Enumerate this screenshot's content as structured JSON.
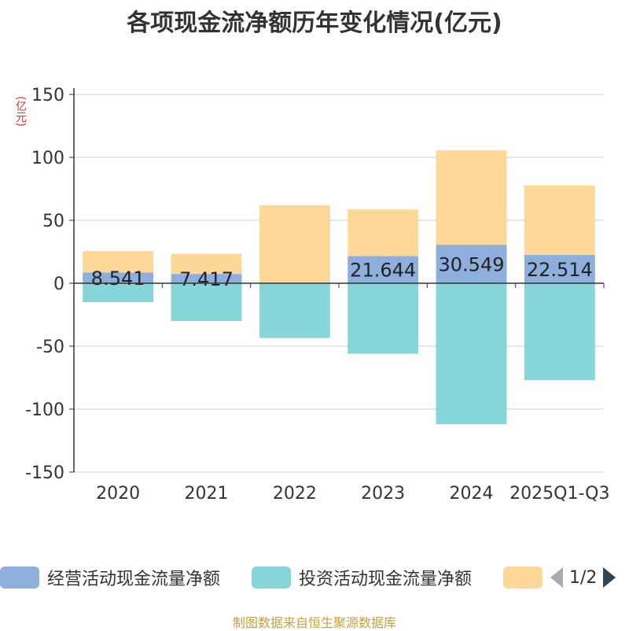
{
  "title": "各项现金流净额历年变化情况(亿元)",
  "y_unit": "(亿元)",
  "source": "制图数据来自恒生聚源数据库",
  "pager": {
    "text": "1/2"
  },
  "colors": {
    "operating": "#8eaedc",
    "investing": "#86d6d9",
    "third": "#fed898",
    "axis": "#333333",
    "grid": "#cccccc"
  },
  "legend": [
    {
      "label": "经营活动现金流量净额",
      "color": "#8eaedc"
    },
    {
      "label": "投资活动现金流量净额",
      "color": "#86d6d9"
    },
    {
      "label": "",
      "color": "#fed898"
    }
  ],
  "chart_data": {
    "type": "bar",
    "stacked": true,
    "title": "各项现金流净额历年变化情况(亿元)",
    "ylabel": "(亿元)",
    "ylim": [
      -150,
      150
    ],
    "yticks": [
      150,
      100,
      50,
      0,
      -50,
      -100,
      -150
    ],
    "grid": true,
    "legend_position": "bottom",
    "categories": [
      "2020",
      "2021",
      "2022",
      "2023",
      "2024",
      "2025Q1-Q3"
    ],
    "series": [
      {
        "name": "经营活动现金流量净额",
        "values": [
          8.541,
          7.417,
          -0.5,
          21.644,
          30.549,
          22.514
        ],
        "labels": [
          "8.541",
          "7.417",
          "",
          "21.644",
          "30.549",
          "22.514"
        ]
      },
      {
        "name": "投资活动现金流量净额",
        "values": [
          -15,
          -30,
          -43,
          -56,
          -112,
          -77
        ]
      },
      {
        "name": "",
        "values": [
          17,
          16,
          62,
          37,
          75,
          55
        ]
      }
    ]
  }
}
